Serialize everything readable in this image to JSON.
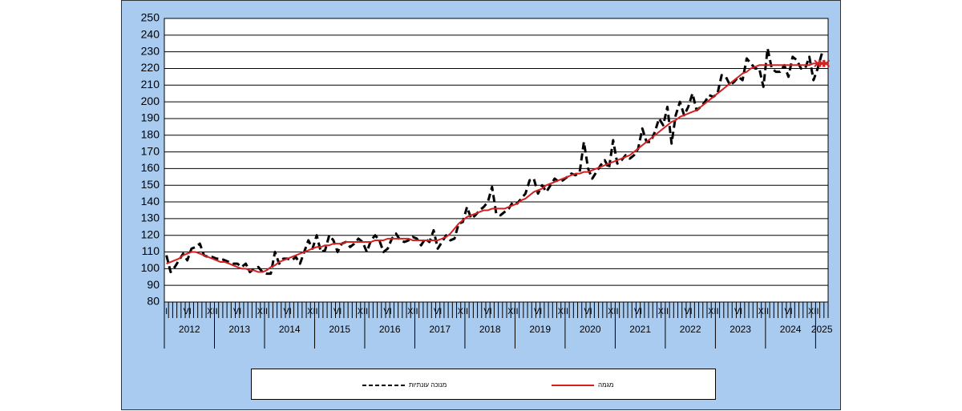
{
  "chart_data": {
    "type": "line",
    "categories": [
      "I",
      null,
      null,
      null,
      null,
      "VI",
      null,
      null,
      null,
      null,
      null,
      "XII",
      "I",
      null,
      null,
      null,
      null,
      "VI",
      null,
      null,
      null,
      null,
      null,
      "XII",
      "I",
      null,
      null,
      null,
      null,
      "VI",
      null,
      null,
      null,
      null,
      null,
      "XII",
      "I",
      null,
      null,
      null,
      null,
      "VI",
      null,
      null,
      null,
      null,
      null,
      "XII",
      "I",
      null,
      null,
      null,
      null,
      "VI",
      null,
      null,
      null,
      null,
      null,
      "XII",
      "I",
      null,
      null,
      null,
      null,
      "VI",
      null,
      null,
      null,
      null,
      null,
      "XII",
      "I",
      null,
      null,
      null,
      null,
      "VI",
      null,
      null,
      null,
      null,
      null,
      "XII",
      "I",
      null,
      null,
      null,
      null,
      "VI",
      null,
      null,
      null,
      null,
      null,
      "XII",
      "I",
      null,
      null,
      null,
      null,
      "VI",
      null,
      null,
      null,
      null,
      null,
      "XII",
      "I",
      null,
      null,
      null,
      null,
      "VI",
      null,
      null,
      null,
      null,
      null,
      "XII",
      "I",
      null,
      null,
      null,
      null,
      "VI",
      null,
      null,
      null,
      null,
      null,
      "XII",
      "I",
      null,
      null,
      null,
      null,
      "VI",
      null,
      null,
      null,
      null,
      null,
      "XII",
      "I",
      null,
      null,
      null,
      null,
      "VI",
      null,
      null,
      null,
      null,
      null,
      "XII",
      null,
      null,
      null
    ],
    "years": [
      "2012",
      "2013",
      "2014",
      "2015",
      "2016",
      "2017",
      "2018",
      "2019",
      "2020",
      "2021",
      "2022",
      "2023",
      "2024",
      "2025"
    ],
    "series": [
      {
        "name": "מנוכה עונתיות",
        "color": "#000000",
        "style": "dashed",
        "values": [
          108,
          98,
          101,
          105,
          109,
          105,
          112,
          113,
          115,
          108,
          107,
          107,
          106,
          106,
          105,
          104,
          103,
          103,
          101,
          103,
          98,
          100,
          101,
          98,
          97,
          97,
          110,
          103,
          106,
          106,
          105,
          107,
          103,
          110,
          117,
          112,
          120,
          110,
          111,
          120,
          117,
          110,
          115,
          116,
          113,
          115,
          118,
          116,
          110,
          117,
          120,
          117,
          110,
          112,
          118,
          121,
          117,
          116,
          117,
          119,
          118,
          114,
          118,
          116,
          123,
          112,
          116,
          120,
          117,
          118,
          127,
          128,
          137,
          130,
          132,
          135,
          137,
          140,
          149,
          133,
          132,
          134,
          136,
          140,
          139,
          142,
          145,
          153,
          154,
          145,
          150,
          146,
          150,
          154,
          152,
          153,
          155,
          157,
          156,
          158,
          176,
          160,
          154,
          158,
          162,
          165,
          160,
          177,
          163,
          165,
          168,
          166,
          168,
          172,
          184,
          176,
          176,
          182,
          190,
          186,
          197,
          175,
          192,
          200,
          192,
          197,
          205,
          195,
          197,
          200,
          204,
          203,
          205,
          216,
          215,
          210,
          212,
          215,
          213,
          226,
          223,
          220,
          220,
          209,
          232,
          220,
          218,
          218,
          222,
          215,
          227,
          225,
          220,
          220,
          227,
          213,
          220,
          229,
          null
        ]
      },
      {
        "name": "מגמה",
        "color": "#d42020",
        "style": "solid",
        "values": [
          103,
          104,
          105,
          106,
          108,
          109,
          110,
          110,
          109,
          108,
          107,
          106,
          105,
          104,
          104,
          103,
          102,
          101,
          100,
          100,
          99,
          99,
          98,
          98,
          99,
          101,
          102,
          104,
          105,
          106,
          107,
          108,
          109,
          110,
          111,
          112,
          113,
          113,
          114,
          114,
          115,
          115,
          115,
          116,
          116,
          116,
          116,
          116,
          116,
          116,
          117,
          117,
          117,
          118,
          118,
          118,
          118,
          118,
          118,
          117,
          117,
          117,
          117,
          117,
          117,
          117,
          118,
          119,
          121,
          124,
          127,
          129,
          131,
          132,
          133,
          134,
          135,
          135,
          136,
          136,
          136,
          136,
          137,
          138,
          139,
          141,
          142,
          144,
          146,
          147,
          148,
          150,
          151,
          152,
          153,
          154,
          155,
          156,
          157,
          157,
          158,
          158,
          159,
          160,
          161,
          162,
          163,
          164,
          165,
          166,
          167,
          168,
          170,
          172,
          174,
          176,
          178,
          180,
          182,
          184,
          186,
          188,
          189,
          191,
          192,
          193,
          194,
          195,
          197,
          199,
          201,
          203,
          205,
          207,
          209,
          211,
          213,
          215,
          217,
          218,
          220,
          221,
          222,
          222,
          222,
          222,
          222,
          222,
          222,
          222,
          222,
          222,
          222,
          222,
          222,
          223,
          223,
          223,
          223
        ]
      }
    ],
    "ylim": [
      80,
      250
    ],
    "yticks": [
      80,
      90,
      100,
      110,
      120,
      130,
      140,
      150,
      160,
      170,
      180,
      190,
      200,
      210,
      220,
      230,
      240,
      250
    ],
    "grid": true
  }
}
